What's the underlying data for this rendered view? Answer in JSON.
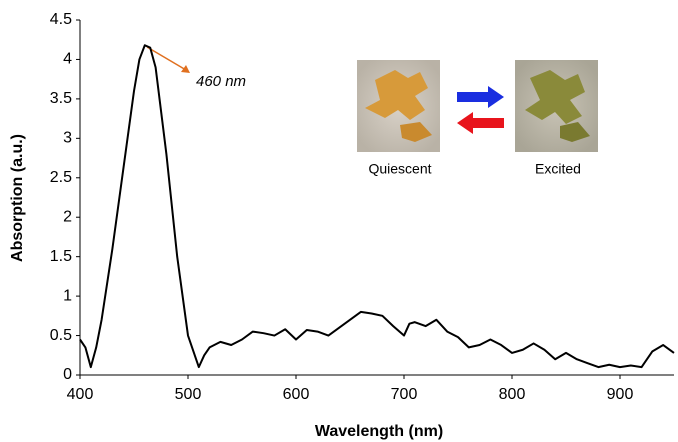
{
  "chart_data": {
    "type": "line",
    "x_label": "Wavelength (nm)",
    "y_label": "Absorption (a.u.)",
    "annotations": [
      "460 nm",
      "Quiescent",
      "Excited"
    ],
    "x": [
      400,
      405,
      410,
      415,
      420,
      430,
      440,
      450,
      455,
      460,
      465,
      470,
      480,
      490,
      500,
      505,
      510,
      515,
      520,
      530,
      540,
      550,
      560,
      570,
      580,
      590,
      600,
      610,
      620,
      630,
      640,
      650,
      660,
      670,
      680,
      690,
      700,
      705,
      710,
      720,
      730,
      740,
      750,
      760,
      770,
      780,
      790,
      800,
      810,
      820,
      830,
      840,
      850,
      860,
      870,
      880,
      890,
      900,
      910,
      920,
      930,
      940,
      950
    ],
    "values": [
      0.45,
      0.35,
      0.1,
      0.35,
      0.7,
      1.6,
      2.6,
      3.6,
      4.0,
      4.18,
      4.15,
      3.9,
      2.8,
      1.5,
      0.5,
      0.3,
      0.1,
      0.25,
      0.35,
      0.42,
      0.38,
      0.45,
      0.55,
      0.53,
      0.5,
      0.58,
      0.45,
      0.57,
      0.55,
      0.5,
      0.6,
      0.7,
      0.8,
      0.78,
      0.75,
      0.62,
      0.5,
      0.65,
      0.67,
      0.62,
      0.7,
      0.55,
      0.48,
      0.35,
      0.38,
      0.45,
      0.38,
      0.28,
      0.32,
      0.4,
      0.32,
      0.2,
      0.28,
      0.2,
      0.15,
      0.1,
      0.13,
      0.1,
      0.12,
      0.1,
      0.3,
      0.38,
      0.28
    ],
    "color": "#000000",
    "xlim": [
      400,
      950
    ],
    "xticks": [
      400,
      500,
      600,
      700,
      800,
      900
    ],
    "ylim": [
      0,
      4.5
    ],
    "yticks": [
      0,
      0.5,
      1,
      1.5,
      2,
      2.5,
      3,
      3.5,
      4,
      4.5
    ],
    "grid": false
  }
}
